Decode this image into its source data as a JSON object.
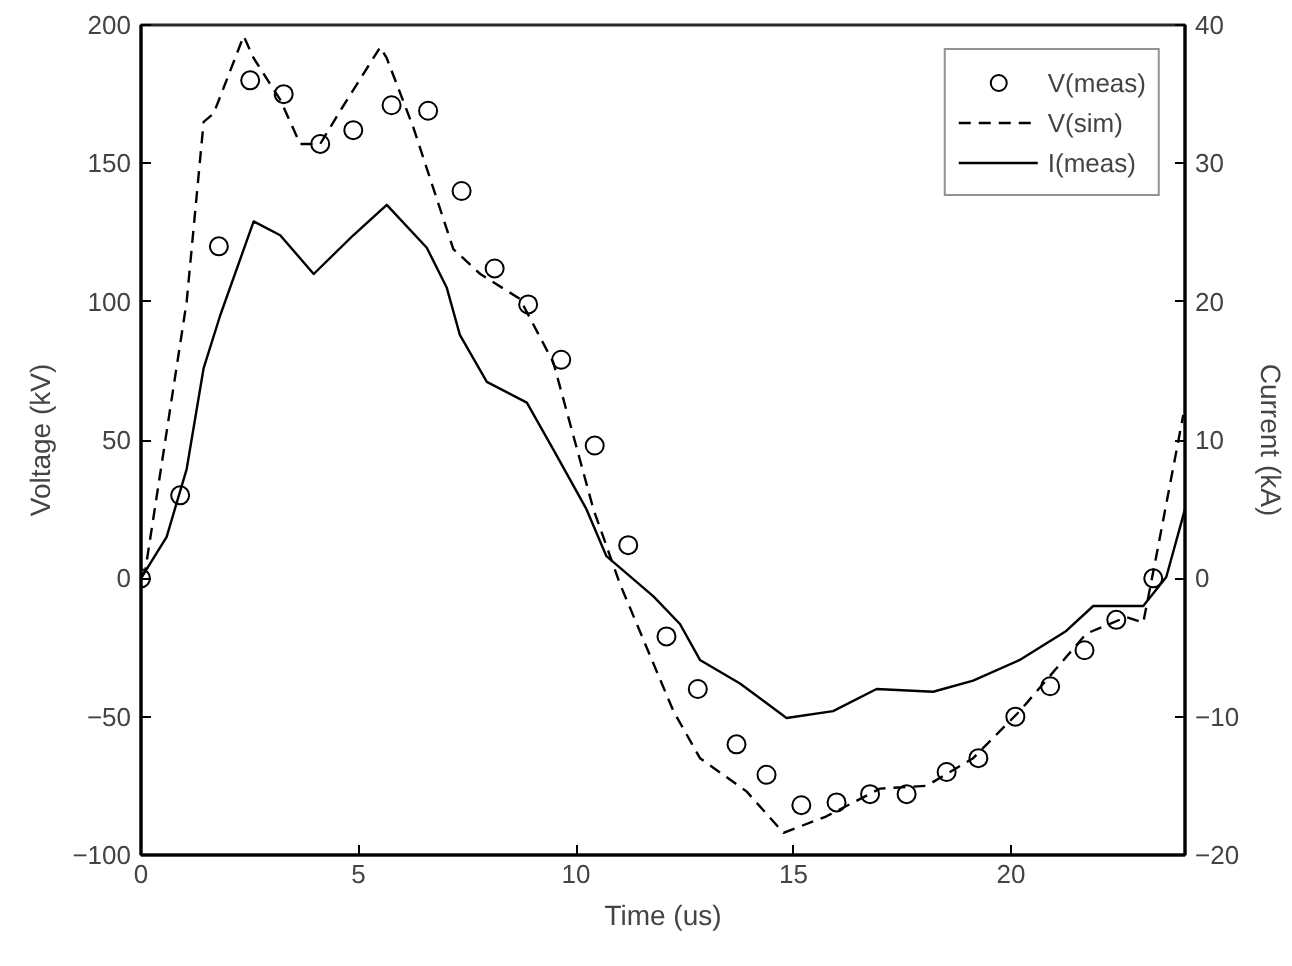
{
  "chart_data": {
    "type": "line",
    "xlabel": "Time (us)",
    "ylabel": "Voltage (kV)",
    "y2label": "Current (kA)",
    "xlim": [
      0,
      24
    ],
    "xticks": [
      0,
      5,
      10,
      15,
      20
    ],
    "ylim": [
      -100,
      200
    ],
    "yticks": [
      -100,
      -50,
      0,
      50,
      100,
      150,
      200
    ],
    "y2lim": [
      -20,
      40
    ],
    "y2ticks": [
      -20,
      -10,
      0,
      10,
      20,
      30,
      40
    ],
    "grid": false,
    "legend": "top right",
    "series": [
      {
        "name": "V(meas)",
        "type": "scatter",
        "marker": "circle",
        "color": "#000000",
        "x": [
          0,
          0.9,
          1.79,
          2.51,
          3.28,
          4.12,
          4.88,
          5.76,
          6.6,
          7.37,
          8.13,
          8.9,
          9.66,
          10.43,
          11.2,
          12.08,
          12.8,
          13.69,
          14.38,
          15.18,
          15.99,
          16.76,
          17.6,
          18.52,
          19.25,
          20.1,
          20.9,
          21.69,
          22.42,
          23.27
        ],
        "values": [
          0,
          30,
          120,
          180,
          175,
          157,
          162,
          171,
          169,
          140,
          112,
          99,
          79,
          48,
          12,
          -21,
          -40,
          -60,
          -71,
          -82,
          -81,
          -78,
          -78,
          -70,
          -65,
          -50,
          -39,
          -26,
          -15,
          0
        ]
      },
      {
        "name": "V(sim)",
        "line_style": "dashed",
        "color": "#000000",
        "x": [
          0,
          0.1,
          1.05,
          1.44,
          1.67,
          2.36,
          2.59,
          3.2,
          3.66,
          4.12,
          4.58,
          5.5,
          5.65,
          6.26,
          7.18,
          7.8,
          8.71,
          9.48,
          10.4,
          11.01,
          12.24,
          12.85,
          13.92,
          14.77,
          15.76,
          16.99,
          18.06,
          19.13,
          20.2,
          21.73,
          22.65,
          23.04,
          23.34,
          23.96
        ],
        "values": [
          0,
          3,
          100,
          165,
          168,
          196,
          188,
          173,
          157,
          157,
          169,
          192,
          188,
          163,
          119,
          110,
          101,
          78,
          25,
          -2,
          -48,
          -65,
          -77,
          -92,
          -86,
          -76,
          -75,
          -65,
          -48,
          -20,
          -14,
          -16,
          8,
          59
        ]
      },
      {
        "name": "I(meas)",
        "line_style": "solid",
        "axis": "y2",
        "color": "#000000",
        "x": [
          0,
          0.59,
          1.05,
          1.44,
          1.82,
          2.59,
          3.2,
          3.97,
          4.88,
          5.65,
          6.57,
          7.03,
          7.33,
          7.95,
          8.87,
          9.48,
          10.24,
          10.7,
          11.78,
          12.39,
          12.85,
          13.77,
          14.84,
          15.91,
          16.91,
          18.21,
          19.13,
          20.2,
          21.27,
          21.89,
          23.04,
          23.57,
          24
        ],
        "values": [
          0,
          3,
          7.9,
          15.2,
          19,
          25.8,
          24.8,
          22,
          24.8,
          27,
          23.9,
          21,
          17.6,
          14.2,
          12.7,
          9.3,
          5,
          1.6,
          -1.3,
          -3.3,
          -5.9,
          -7.6,
          -10.1,
          -9.6,
          -8,
          -8.2,
          -7.4,
          -5.9,
          -3.8,
          -2,
          -2,
          0.1,
          5
        ]
      }
    ]
  }
}
